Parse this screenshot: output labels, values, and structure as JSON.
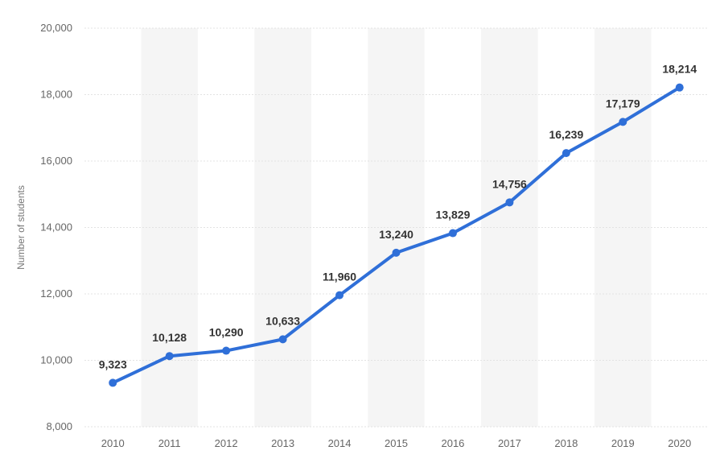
{
  "chart_data": {
    "type": "line",
    "title": "",
    "xlabel": "",
    "ylabel": "Number of students",
    "categories": [
      "2010",
      "2011",
      "2012",
      "2013",
      "2014",
      "2015",
      "2016",
      "2017",
      "2018",
      "2019",
      "2020"
    ],
    "series": [
      {
        "values": [
          9323,
          10128,
          10290,
          10633,
          11960,
          13240,
          13829,
          14756,
          16239,
          17179,
          18214
        ],
        "data_labels": [
          "9,323",
          "10,128",
          "10,290",
          "10,633",
          "11,960",
          "13,240",
          "13,829",
          "14,756",
          "16,239",
          "17,179",
          "18,214"
        ]
      }
    ],
    "ylim": [
      8000,
      20000
    ],
    "yticks": [
      8000,
      10000,
      12000,
      14000,
      16000,
      18000,
      20000
    ],
    "ytick_labels": [
      "8,000",
      "10,000",
      "12,000",
      "14,000",
      "16,000",
      "18,000",
      "20,000"
    ],
    "grid": true,
    "alternating_column_bands": true,
    "legend": "none",
    "colors": {
      "line": "#2f6fd8",
      "grid": "#e3e3e3",
      "band": "#f5f5f5",
      "tick_text": "#666666",
      "label_text": "#333333"
    }
  }
}
